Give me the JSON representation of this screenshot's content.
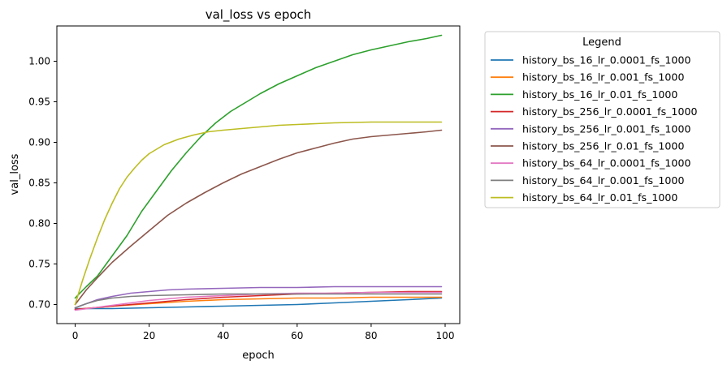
{
  "chart_data": {
    "type": "line",
    "title": "val_loss vs epoch",
    "xlabel": "epoch",
    "ylabel": "val_loss",
    "xlim": [
      -4.95,
      103.95
    ],
    "ylim": [
      0.6765,
      1.0435
    ],
    "xticks": [
      0,
      20,
      40,
      60,
      80,
      100
    ],
    "yticks": [
      0.7,
      0.75,
      0.8,
      0.85,
      0.9,
      0.95,
      1.0
    ],
    "ytick_labels": [
      "0.70",
      "0.75",
      "0.80",
      "0.85",
      "0.90",
      "0.95",
      "1.00"
    ],
    "legend_title": "Legend",
    "legend_position": "outside-right",
    "grid": false,
    "series": [
      {
        "name": "history_bs_16_lr_0.0001_fs_1000",
        "color": "#1f77b4",
        "x": [
          0,
          10,
          20,
          30,
          40,
          50,
          60,
          70,
          80,
          90,
          99
        ],
        "y": [
          0.695,
          0.695,
          0.696,
          0.697,
          0.698,
          0.699,
          0.7,
          0.702,
          0.704,
          0.706,
          0.708
        ]
      },
      {
        "name": "history_bs_16_lr_0.001_fs_1000",
        "color": "#ff7f0e",
        "x": [
          0,
          5,
          10,
          20,
          30,
          40,
          50,
          60,
          70,
          80,
          90,
          99
        ],
        "y": [
          0.694,
          0.696,
          0.698,
          0.701,
          0.704,
          0.706,
          0.707,
          0.708,
          0.708,
          0.709,
          0.709,
          0.709
        ]
      },
      {
        "name": "history_bs_16_lr_0.01_fs_1000",
        "color": "#2ca02c",
        "x": [
          0,
          3,
          6,
          10,
          14,
          18,
          22,
          26,
          30,
          34,
          38,
          42,
          46,
          50,
          55,
          60,
          65,
          70,
          75,
          80,
          85,
          90,
          95,
          99
        ],
        "y": [
          0.708,
          0.722,
          0.735,
          0.76,
          0.785,
          0.815,
          0.84,
          0.865,
          0.887,
          0.907,
          0.924,
          0.938,
          0.949,
          0.96,
          0.972,
          0.982,
          0.992,
          1.0,
          1.008,
          1.014,
          1.019,
          1.024,
          1.028,
          1.032
        ]
      },
      {
        "name": "history_bs_256_lr_0.0001_fs_1000",
        "color": "#d62728",
        "x": [
          0,
          5,
          10,
          15,
          20,
          25,
          30,
          40,
          50,
          60,
          70,
          80,
          90,
          99
        ],
        "y": [
          0.694,
          0.696,
          0.698,
          0.7,
          0.702,
          0.704,
          0.706,
          0.709,
          0.711,
          0.713,
          0.714,
          0.715,
          0.716,
          0.716
        ]
      },
      {
        "name": "history_bs_256_lr_0.001_fs_1000",
        "color": "#9467bd",
        "x": [
          0,
          3,
          6,
          10,
          15,
          20,
          25,
          30,
          40,
          50,
          60,
          70,
          80,
          90,
          99
        ],
        "y": [
          0.696,
          0.701,
          0.706,
          0.71,
          0.714,
          0.716,
          0.718,
          0.719,
          0.72,
          0.721,
          0.721,
          0.722,
          0.722,
          0.722,
          0.722
        ]
      },
      {
        "name": "history_bs_256_lr_0.01_fs_1000",
        "color": "#8c564b",
        "x": [
          0,
          3,
          6,
          10,
          15,
          20,
          25,
          30,
          35,
          40,
          45,
          50,
          55,
          60,
          65,
          70,
          75,
          80,
          85,
          90,
          95,
          99
        ],
        "y": [
          0.7,
          0.718,
          0.733,
          0.752,
          0.772,
          0.791,
          0.81,
          0.825,
          0.838,
          0.85,
          0.861,
          0.87,
          0.879,
          0.887,
          0.893,
          0.899,
          0.904,
          0.907,
          0.909,
          0.911,
          0.913,
          0.915
        ]
      },
      {
        "name": "history_bs_64_lr_0.0001_fs_1000",
        "color": "#e377c2",
        "x": [
          0,
          5,
          10,
          15,
          20,
          25,
          30,
          40,
          50,
          60,
          70,
          80,
          90,
          99
        ],
        "y": [
          0.693,
          0.696,
          0.699,
          0.702,
          0.705,
          0.707,
          0.709,
          0.711,
          0.713,
          0.714,
          0.714,
          0.715,
          0.715,
          0.715
        ]
      },
      {
        "name": "history_bs_64_lr_0.001_fs_1000",
        "color": "#7f7f7f",
        "x": [
          0,
          3,
          6,
          10,
          15,
          20,
          30,
          40,
          50,
          60,
          70,
          80,
          90,
          99
        ],
        "y": [
          0.696,
          0.701,
          0.705,
          0.708,
          0.71,
          0.711,
          0.712,
          0.713,
          0.713,
          0.713,
          0.713,
          0.713,
          0.713,
          0.713
        ]
      },
      {
        "name": "history_bs_64_lr_0.01_fs_1000",
        "color": "#bcbd22",
        "x": [
          0,
          2,
          4,
          6,
          8,
          10,
          12,
          14,
          16,
          18,
          20,
          24,
          28,
          32,
          36,
          40,
          45,
          50,
          55,
          60,
          65,
          70,
          80,
          90,
          99
        ],
        "y": [
          0.7,
          0.73,
          0.757,
          0.782,
          0.805,
          0.825,
          0.843,
          0.857,
          0.868,
          0.878,
          0.886,
          0.897,
          0.904,
          0.909,
          0.913,
          0.915,
          0.917,
          0.919,
          0.921,
          0.922,
          0.923,
          0.924,
          0.925,
          0.925,
          0.925
        ]
      }
    ]
  }
}
